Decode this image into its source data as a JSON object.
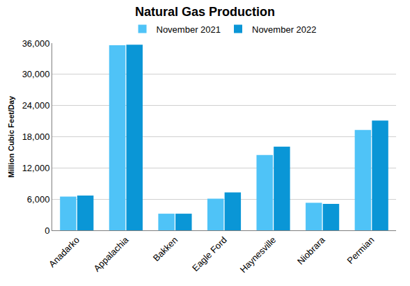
{
  "chart_data": {
    "type": "bar",
    "title": "Natural Gas Production",
    "y_label": "Million Cubic Feet/Day",
    "categories": [
      "Anadarko",
      "Appalachia",
      "Bakken",
      "Eagle Ford",
      "Haynesville",
      "Niobrara",
      "Permian"
    ],
    "series": [
      {
        "name": "November 2021",
        "color": "#4fc3f7",
        "values": [
          6500,
          35600,
          3200,
          6100,
          14500,
          5300,
          19300
        ]
      },
      {
        "name": "November 2022",
        "color": "#0a96d6",
        "values": [
          6700,
          35700,
          3200,
          7300,
          16100,
          5100,
          21100
        ]
      }
    ],
    "ylim": [
      0,
      36000
    ],
    "yticks": [
      0,
      {
        "value": 6000,
        "label": "6,000"
      },
      {
        "value": 12000,
        "label": "12,000"
      },
      {
        "value": 18000,
        "label": "18,000"
      },
      {
        "value": 24000,
        "label": "24,000"
      },
      {
        "value": 30000,
        "label": "30,000"
      },
      {
        "value": 36000,
        "label": "36,000"
      }
    ],
    "grid": true,
    "legend": "top"
  }
}
